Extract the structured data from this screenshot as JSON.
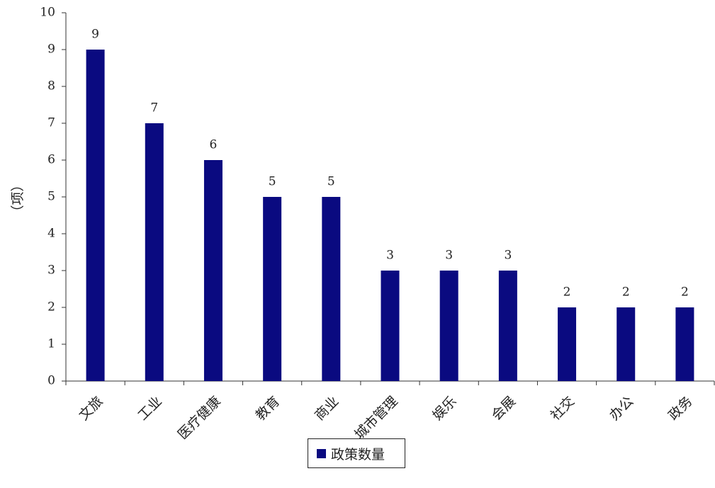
{
  "chart_data": {
    "type": "bar",
    "categories": [
      "文旅",
      "工业",
      "医疗健康",
      "教育",
      "商业",
      "城市管理",
      "娱乐",
      "会展",
      "社交",
      "办公",
      "政务"
    ],
    "series": [
      {
        "name": "政策数量",
        "values": [
          9,
          7,
          6,
          5,
          5,
          3,
          3,
          3,
          2,
          2,
          2
        ],
        "color": "#0a0a80"
      }
    ],
    "title": "",
    "xlabel": "",
    "ylabel": "（项）",
    "ylim": [
      0,
      10
    ],
    "yticks": [
      0,
      1,
      2,
      3,
      4,
      5,
      6,
      7,
      8,
      9,
      10
    ],
    "grid": false,
    "legend_position": "bottom-center",
    "data_labels": true
  }
}
